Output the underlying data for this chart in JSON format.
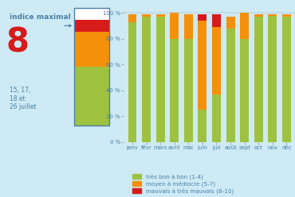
{
  "months": [
    "janv",
    "févr",
    "mars",
    "avril",
    "mai",
    "juin",
    "juil",
    "août",
    "sept",
    "oct",
    "nov",
    "déc"
  ],
  "tres_bon": [
    93,
    97,
    97,
    80,
    80,
    25,
    37,
    88,
    80,
    97,
    98,
    97
  ],
  "moyen": [
    6,
    2,
    2,
    20,
    19,
    69,
    52,
    9,
    20,
    2,
    1,
    2
  ],
  "mauvais": [
    0,
    0,
    0,
    0,
    0,
    5,
    10,
    0,
    0,
    0,
    0,
    0
  ],
  "color_tres_bon": "#9ec23f",
  "color_moyen": "#f5900a",
  "color_mauvais": "#d71a1a",
  "color_bg": "#cdeaf5",
  "color_text": "#4a7fa5",
  "legend_labels": [
    "très bon à bon (1-4)",
    "moyen à médiocre (5-7)",
    "mauvais à très mauvais (8-10)"
  ],
  "ytick_labels": [
    "0 %",
    "20 %",
    "40 %",
    "60 %",
    "80 %",
    "100 %"
  ],
  "yticks": [
    0,
    20,
    40,
    60,
    80,
    100
  ],
  "indice_label": "indice maximal",
  "indice_num": "8",
  "indice_date": "15, 17,\n18 et\n26 juillet",
  "left_panel_colors": [
    "#ffffff",
    "#d71a1a",
    "#f5900a",
    "#f5900a",
    "#f5900a",
    "#9ec23f",
    "#9ec23f",
    "#9ec23f",
    "#9ec23f",
    "#9ec23f"
  ],
  "left_panel_border": "#4a7fa5"
}
